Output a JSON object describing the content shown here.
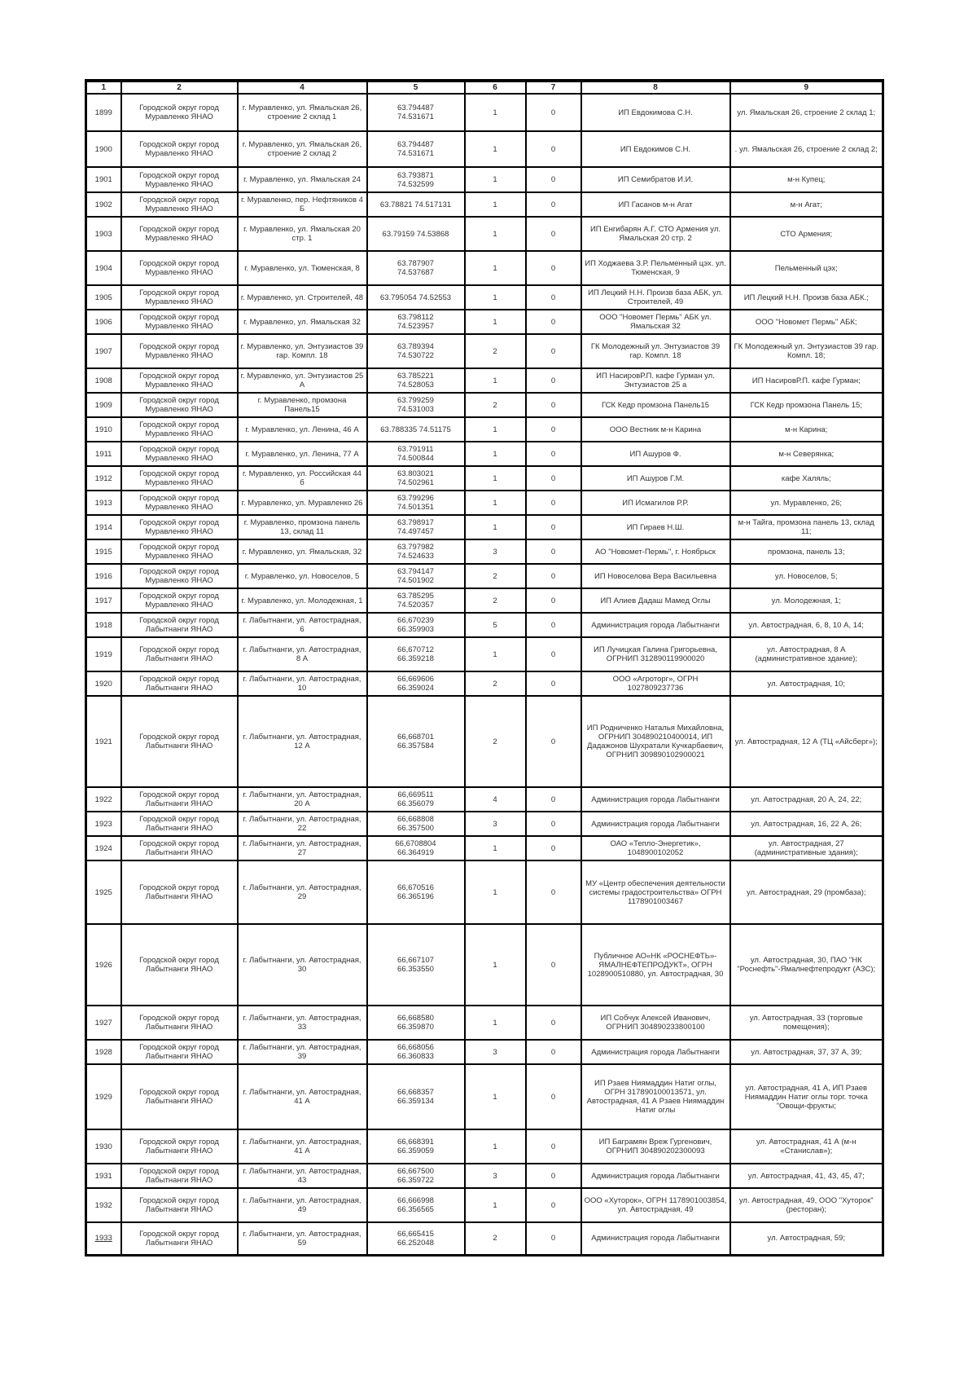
{
  "document": {
    "columns": [
      "1",
      "2",
      "4",
      "5",
      "6",
      "7",
      "8",
      "9"
    ],
    "rows": [
      {
        "n": "1899",
        "district": "Городской округ город Муравленко ЯНАО",
        "address": "г. Муравленко, ул. Ямальская 26, строение 2 склад 1",
        "coords": "63.794487\n74.531671",
        "c6": "1",
        "c7": "0",
        "entity": "ИП Евдокимова С.Н.",
        "objects": "ул. Ямальская 26, строение 2 склад 1;"
      },
      {
        "n": "1900",
        "district": "Городской округ город Муравленко ЯНАО",
        "address": "г. Муравленко, ул. Ямальская 26, строение 2 склад 2",
        "coords": "63.794487\n74.531671",
        "c6": "1",
        "c7": "0",
        "entity": "ИП Евдокимов С.Н.",
        "objects": ". ул. Ямальская 26, строение 2 склад 2;"
      },
      {
        "n": "1901",
        "district": "Городской округ город Муравленко ЯНАО",
        "address": "г. Муравленко, ул. Ямальская 24",
        "coords": "63.793871\n74.532599",
        "c6": "1",
        "c7": "0",
        "entity": "ИП Семибратов И.И.",
        "objects": "м-н Купец;"
      },
      {
        "n": "1902",
        "district": "Городской округ город Муравленко ЯНАО",
        "address": "г. Муравленко, пер. Нефтяников 4 Б",
        "coords": "63.78821 74.517131",
        "c6": "1",
        "c7": "0",
        "entity": "ИП Гасанов м-н Агат",
        "objects": "м-н Агат;"
      },
      {
        "n": "1903",
        "district": "Городской округ город Муравленко ЯНАО",
        "address": "г. Муравленко, ул. Ямальская 20 стр. 1",
        "coords": "63.79159 74.53868",
        "c6": "1",
        "c7": "0",
        "entity": "ИП Енгибарян А.Г. СТО Армения ул. Ямальская 20 стр. 2",
        "objects": "СТО Армения;"
      },
      {
        "n": "1904",
        "district": "Городской округ город Муравленко ЯНАО",
        "address": "г. Муравленко, ул. Тюменская, 8",
        "coords": "63.787907\n74.537687",
        "c6": "1",
        "c7": "0",
        "entity": "ИП Ходжаева З.Р. Пельменный цэх. ул. Тюменская, 9",
        "objects": "Пельменный цэх;"
      },
      {
        "n": "1905",
        "district": "Городской округ город Муравленко ЯНАО",
        "address": "г. Муравленко, ул. Строителей, 48",
        "coords": "63.795054 74.52553",
        "c6": "1",
        "c7": "0",
        "entity": "ИП Лецкий Н.Н. Произв база АБК, ул. Строителей, 49",
        "objects": "ИП Лецкий Н.Н. Произв база АБК.;"
      },
      {
        "n": "1906",
        "district": "Городской округ город Муравленко ЯНАО",
        "address": "г. Муравленко, ул. Ямальская 32",
        "coords": "63.798112\n74.523957",
        "c6": "1",
        "c7": "0",
        "entity": "ООО \"Новомет Пермь\" АБК ул. Ямальская 32",
        "objects": "ООО \"Новомет Пермь\" АБК;"
      },
      {
        "n": "1907",
        "district": "Городской округ город Муравленко ЯНАО",
        "address": "г. Муравленко, ул. Энтузиастов 39 гар. Компл. 18",
        "coords": "63.789394\n74.530722",
        "c6": "2",
        "c7": "0",
        "entity": "ГК Молодежный ул. Энтузиастов 39 гар. Компл. 18",
        "objects": "ГК Молодежный ул. Энтузиастов 39 гар. Компл. 18;"
      },
      {
        "n": "1908",
        "district": "Городской округ город Муравленко ЯНАО",
        "address": "г. Муравленко, ул. Энтузиастов 25 А",
        "coords": "63.785221\n74.528053",
        "c6": "1",
        "c7": "0",
        "entity": "ИП НасировР.П. кафе Гурман ул. Энтузиастов 25 а",
        "objects": "ИП НасировР.П. кафе Гурман;"
      },
      {
        "n": "1909",
        "district": "Городской округ город Муравленко ЯНАО",
        "address": "г. Муравленко, промзона Панель15",
        "coords": "63.799259\n74.531003",
        "c6": "2",
        "c7": "0",
        "entity": "ГСК Кедр промзона Панель15",
        "objects": "ГСК Кедр промзона Панель 15;"
      },
      {
        "n": "1910",
        "district": "Городской округ город Муравленко ЯНАО",
        "address": "г. Муравленко, ул. Ленина, 46 А",
        "coords": "63.788335 74.51175",
        "c6": "1",
        "c7": "0",
        "entity": "ООО Вестник м-н Карина",
        "objects": "м-н Карина;"
      },
      {
        "n": "1911",
        "district": "Городской округ город Муравленко ЯНАО",
        "address": "г. Муравленко, ул. Ленина, 77 А",
        "coords": "63.791911\n74.500844",
        "c6": "1",
        "c7": "0",
        "entity": "ИП Ашуров Ф.",
        "objects": "м-н Северянка;"
      },
      {
        "n": "1912",
        "district": "Городской округ город Муравленко ЯНАО",
        "address": "г. Муравленко, ул. Российская 44 б",
        "coords": "63.803021\n74.502961",
        "c6": "1",
        "c7": "0",
        "entity": "ИП Ашуров Г.М.",
        "objects": "кафе Халяль;"
      },
      {
        "n": "1913",
        "district": "Городской округ город Муравленко ЯНАО",
        "address": "г. Муравленко, ул. Муравленко 26",
        "coords": "63.799296\n74.501351",
        "c6": "1",
        "c7": "0",
        "entity": "ИП Исмагилов Р.Р.",
        "objects": "ул. Муравленко, 26;"
      },
      {
        "n": "1914",
        "district": "Городской округ город Муравленко ЯНАО",
        "address": "г. Муравленко, промзона панель 13, склад 11",
        "coords": "63.798917\n74.497457",
        "c6": "1",
        "c7": "0",
        "entity": "ИП Гираев Н.Ш.",
        "objects": "м-н Тайга, промзона панель 13, склад 11;"
      },
      {
        "n": "1915",
        "district": "Городской округ город Муравленко ЯНАО",
        "address": "г. Муравленко, ул. Ямальская, 32",
        "coords": "63.797982\n74.524633",
        "c6": "3",
        "c7": "0",
        "entity": "АО \"Новомет-Пермь\", г. Ноябрьск",
        "objects": "промзона, панель 13;"
      },
      {
        "n": "1916",
        "district": "Городской округ город Муравленко ЯНАО",
        "address": "г. Муравленко, ул. Новоселов, 5",
        "coords": "63.794147\n74.501902",
        "c6": "2",
        "c7": "0",
        "entity": "ИП Новоселова Вера Васильевна",
        "objects": "ул. Новоселов, 5;"
      },
      {
        "n": "1917",
        "district": "Городской округ город Муравленко ЯНАО",
        "address": "г. Муравленко, ул. Молодежная, 1",
        "coords": "63.785295\n74.520357",
        "c6": "2",
        "c7": "0",
        "entity": "ИП Алиев Дадаш Мамед Оглы",
        "objects": "ул. Молодежная, 1;"
      },
      {
        "n": "1918",
        "district": "Городской округ город Лабытнанги ЯНАО",
        "address": "г. Лабытнанги, ул. Автострадная, 6",
        "coords": "66,670239\n66.359903",
        "c6": "5",
        "c7": "0",
        "entity": "Администрация города Лабытнанги",
        "objects": "ул. Автострадная, 6, 8, 10 А, 14;"
      },
      {
        "n": "1919",
        "district": "Городской округ город Лабытнанги ЯНАО",
        "address": "г. Лабытнанги, ул. Автострадная, 8 А",
        "coords": "66,670712\n66.359218",
        "c6": "1",
        "c7": "0",
        "entity": "ИП Лучицкая Галина Григорьевна, ОГРНИП 312890119900020",
        "objects": "ул. Автострадная, 8 А (административное здание);"
      },
      {
        "n": "1920",
        "district": "Городской округ город Лабытнанги ЯНАО",
        "address": "г. Лабытнанги, ул. Автострадная, 10",
        "coords": "66,669606\n66.359024",
        "c6": "2",
        "c7": "0",
        "entity": "ООО «Агроторг», ОГРН 1027809237736",
        "objects": "ул. Автострадная, 10;"
      },
      {
        "n": "1921",
        "district": "Городской округ город Лабытнанги ЯНАО",
        "address": "г. Лабытнанги, ул. Автострадная, 12 А",
        "coords": "66,668701\n66.357584",
        "c6": "2",
        "c7": "0",
        "entity": "ИП Родниченко Наталья Михайловна, ОГРНИП 304890210400014, ИП Дадажонов Шухратали Кучкарбаевич, ОГРНИП 309890102900021",
        "objects": "ул. Автострадная, 12 А (ТЦ «Айсберг»);"
      },
      {
        "n": "1922",
        "district": "Городской округ город Лабытнанги ЯНАО",
        "address": "г. Лабытнанги, ул. Автострадная, 20 А",
        "coords": "66,669511\n66.356079",
        "c6": "4",
        "c7": "0",
        "entity": "Администрация города Лабытнанги",
        "objects": "ул. Автострадная, 20 А, 24, 22;"
      },
      {
        "n": "1923",
        "district": "Городской округ город Лабытнанги ЯНАО",
        "address": "г. Лабытнанги, ул. Автострадная, 22",
        "coords": "66,668808\n66.357500",
        "c6": "3",
        "c7": "0",
        "entity": "Администрация города Лабытнанги",
        "objects": "ул. Автострадная, 16, 22 А, 26;"
      },
      {
        "n": "1924",
        "district": "Городской округ город Лабытнанги ЯНАО",
        "address": "г. Лабытнанги, ул. Автострадная, 27",
        "coords": "66,6708804\n66.364919",
        "c6": "1",
        "c7": "0",
        "entity": "ОАО «Тепло-Энергетик», 1048900102052",
        "objects": "ул. Автострадная, 27 (административные здания);"
      },
      {
        "n": "1925",
        "district": "Городской округ город Лабытнанги ЯНАО",
        "address": "г. Лабытнанги, ул. Автострадная, 29",
        "coords": "66,670516\n66.365196",
        "c6": "1",
        "c7": "0",
        "entity": "МУ «Центр обеспечения деятельности системы градостроительства» ОГРН 1178901003467",
        "objects": "ул. Автострадная, 29 (промбаза);"
      },
      {
        "n": "1926",
        "district": "Городской округ город Лабытнанги ЯНАО",
        "address": "г. Лабытнанги, ул. Автострадная, 30",
        "coords": "66,667107\n66.353550",
        "c6": "1",
        "c7": "0",
        "entity": "Публичное АО«НК «РОСНЕФТЬ»-ЯМАЛНЕФТЕПРОДУКТ», ОГРН 1028900510880, ул. Автострадная, 30",
        "objects": "ул. Автострадная, 30, ПАО \"НК \"Роснефть\"-Ямалнефтепродукт (АЗС);"
      },
      {
        "n": "1927",
        "district": "Городской округ город Лабытнанги ЯНАО",
        "address": "г. Лабытнанги, ул. Автострадная, 33",
        "coords": "66,668580\n66.359870",
        "c6": "1",
        "c7": "0",
        "entity": "ИП Собчук Алексей Иванович, ОГРНИП 304890233800100",
        "objects": "ул. Автострадная, 33 (торговые помещения);"
      },
      {
        "n": "1928",
        "district": "Городской округ город Лабытнанги ЯНАО",
        "address": "г. Лабытнанги, ул. Автострадная, 39",
        "coords": "66,668056\n66.360833",
        "c6": "3",
        "c7": "0",
        "entity": "Администрация города Лабытнанги",
        "objects": "ул. Автострадная, 37, 37 А, 39;"
      },
      {
        "n": "1929",
        "district": "Городской округ город Лабытнанги ЯНАО",
        "address": "г. Лабытнанги, ул. Автострадная, 41 А",
        "coords": "66,668357\n66.359134",
        "c6": "1",
        "c7": "0",
        "entity": "ИП Рзаев Ниямаддин Натиг оглы, ОГРН 317890100013571, ул. Автострадная, 41 А Рзаев Ниямаддин Натиг оглы",
        "objects": "ул. Автострадная, 41 А, ИП Рзаев Ниямаддин Натиг оглы торг. точка \"Овощи-фрукты;"
      },
      {
        "n": "1930",
        "district": "Городской округ город Лабытнанги ЯНАО",
        "address": "г. Лабытнанги, ул. Автострадная, 41 А",
        "coords": "66,668391\n66.359059",
        "c6": "1",
        "c7": "0",
        "entity": "ИП Баграмян Вреж Гургенович, ОГРНИП 304890202300093",
        "objects": "ул. Автострадная, 41 А (м-н «Станислав»);"
      },
      {
        "n": "1931",
        "district": "Городской округ город Лабытнанги ЯНАО",
        "address": "г. Лабытнанги, ул. Автострадная, 43",
        "coords": "66,667500\n66.359722",
        "c6": "3",
        "c7": "0",
        "entity": "Администрация города Лабытнанги",
        "objects": "ул. Автострадная, 41, 43, 45, 47;"
      },
      {
        "n": "1932",
        "district": "Городской округ город Лабытнанги ЯНАО",
        "address": "г. Лабытнанги, ул. Автострадная, 49",
        "coords": "66,666998\n66.356565",
        "c6": "1",
        "c7": "0",
        "entity": "ООО «Хуторок», ОГРН 1178901003854, ул. Автострадная, 49",
        "objects": "ул. Автострадная, 49, ООО \"Хуторок\" (ресторан);"
      },
      {
        "n": "1933",
        "n_underline": true,
        "district": "Городской округ город Лабытнанги ЯНАО",
        "address": "г. Лабытнанги, ул. Автострадная, 59",
        "coords": "66,665415\n66.252048",
        "c6": "2",
        "c7": "0",
        "entity": "Администрация города Лабытнанги",
        "objects": "ул. Автострадная, 59;"
      }
    ]
  }
}
